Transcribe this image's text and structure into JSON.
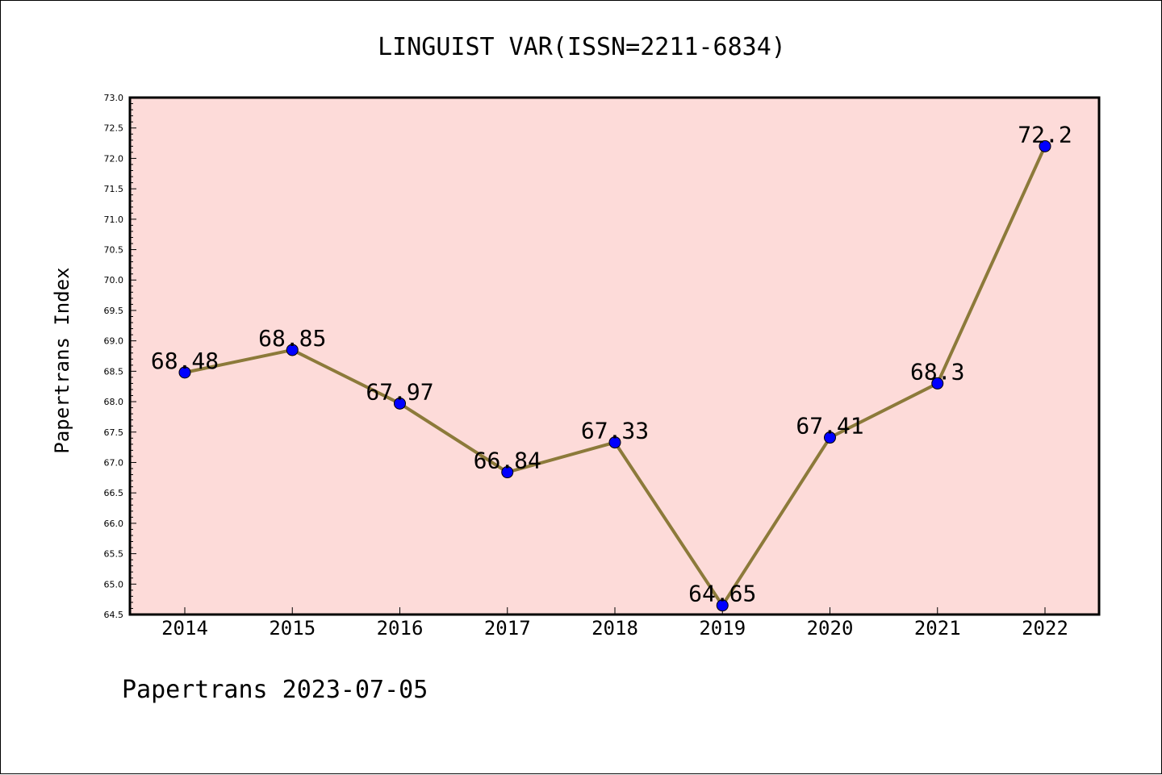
{
  "chart_data": {
    "type": "line",
    "title": "LINGUIST VAR(ISSN=2211-6834)",
    "ylabel": "Papertrans Index",
    "xlabel": "",
    "categories": [
      "2014",
      "2015",
      "2016",
      "2017",
      "2018",
      "2019",
      "2020",
      "2021",
      "2022"
    ],
    "series": [
      {
        "values": [
          68.48,
          68.85,
          67.97,
          66.84,
          67.33,
          64.65,
          67.41,
          68.3,
          72.2
        ]
      }
    ],
    "data_labels": [
      "68.48",
      "68.85",
      "67.97",
      "66.84",
      "67.33",
      "64.65",
      "67.41",
      "68.3",
      "72.2"
    ],
    "ylim": [
      64.5,
      73.0
    ],
    "yticks": [
      "64.5",
      "65.0",
      "65.5",
      "66.0",
      "66.5",
      "67.0",
      "67.5",
      "68.0",
      "68.5",
      "69.0",
      "69.5",
      "70.0",
      "70.5",
      "71.0",
      "71.5",
      "72.0",
      "72.5",
      "73.0"
    ],
    "grid": false,
    "colors": {
      "plot_background": "#fddbd9",
      "line": "#8c7a3a",
      "marker": "#0000ff"
    }
  },
  "footer": "Papertrans 2023-07-05"
}
